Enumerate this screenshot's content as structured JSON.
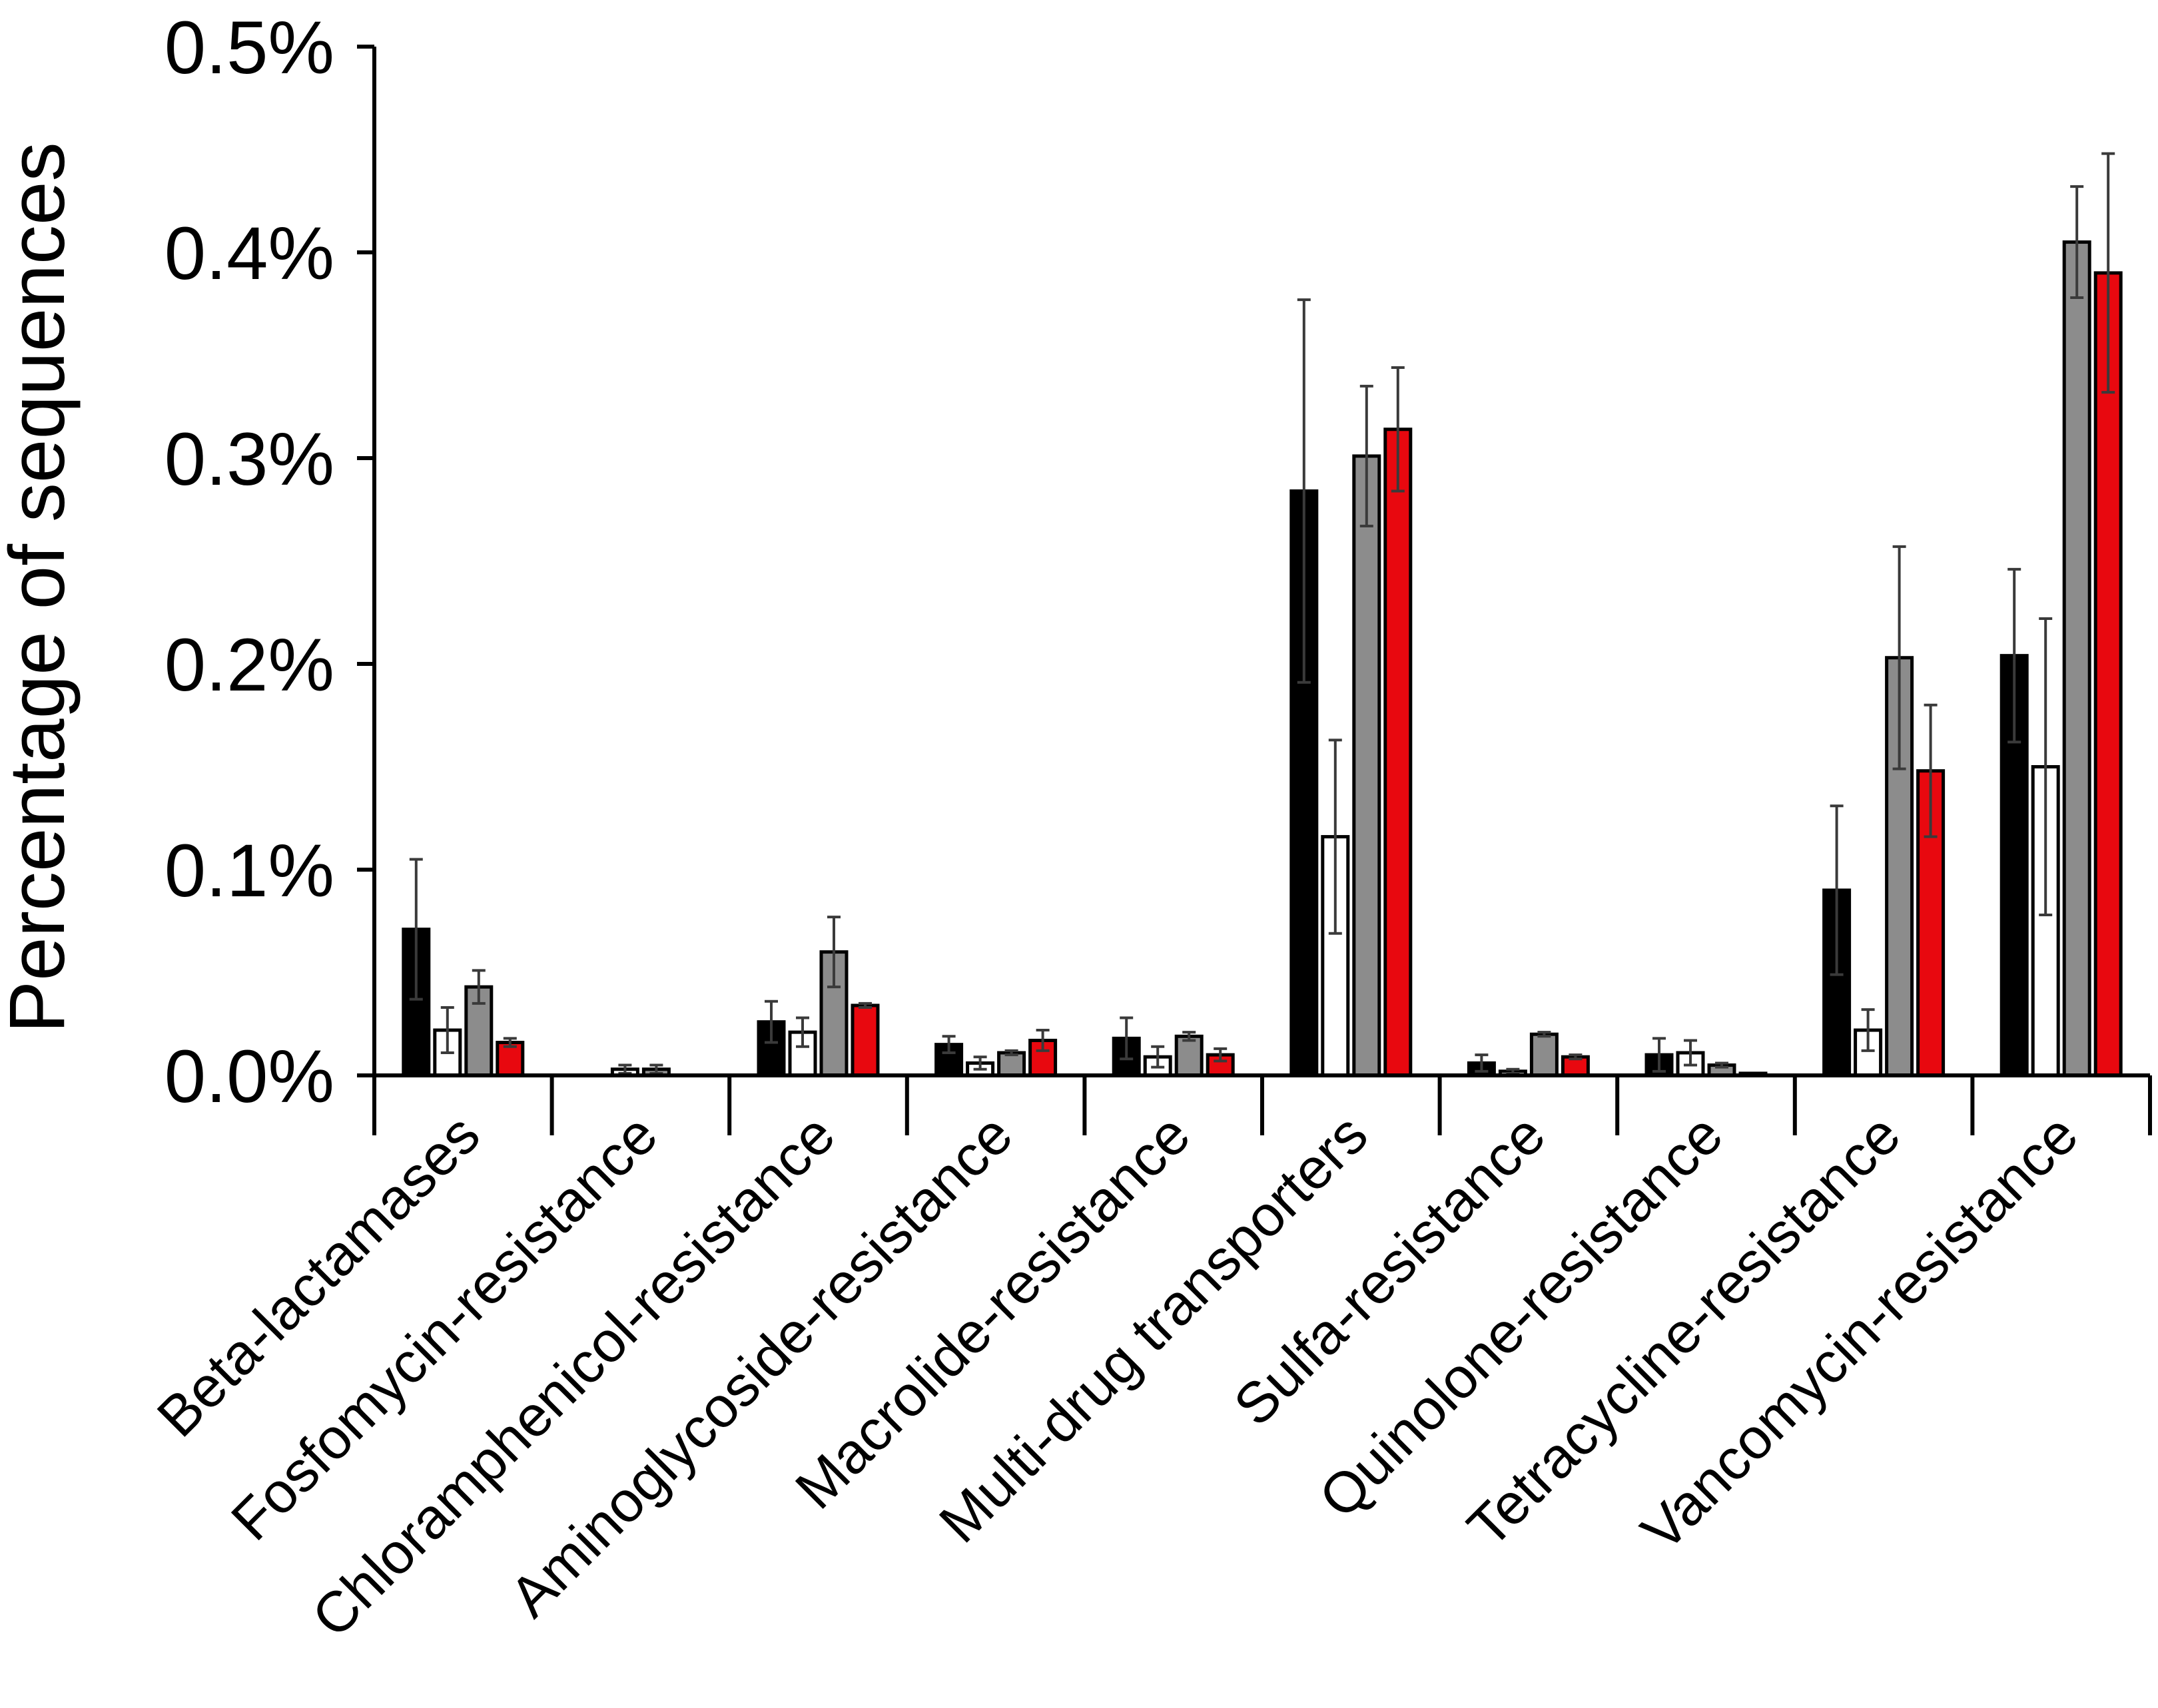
{
  "chart_data": {
    "type": "bar",
    "title": "",
    "xlabel": "",
    "ylabel": "Percentage of sequences",
    "ylim": [
      0,
      0.5
    ],
    "yticks": [
      "0.0%",
      "0.1%",
      "0.2%",
      "0.3%",
      "0.4%",
      "0.5%"
    ],
    "grid": false,
    "legend": "none",
    "categories": [
      "Beta-lactamases",
      "Fosfomycin-resistance",
      "Chloramphenicol-resistance",
      "Aminoglycoside-resistance",
      "Macrolide-resistance",
      "Multi-drug transporters",
      "Sulfa-resistance",
      "Quinolone-resistance",
      "Tetracycline-resistance",
      "Vancomycin-resistance"
    ],
    "series": [
      {
        "color": "#000000",
        "values": [
          0.071,
          0.0,
          0.026,
          0.015,
          0.018,
          0.284,
          0.006,
          0.01,
          0.09,
          0.204
        ],
        "errors": [
          0.034,
          0.0,
          0.01,
          0.004,
          0.01,
          0.093,
          0.004,
          0.008,
          0.041,
          0.042
        ]
      },
      {
        "color": "#ffffff",
        "values": [
          0.022,
          0.003,
          0.021,
          0.006,
          0.009,
          0.116,
          0.002,
          0.011,
          0.022,
          0.15
        ],
        "errors": [
          0.011,
          0.002,
          0.007,
          0.003,
          0.005,
          0.047,
          0.001,
          0.006,
          0.01,
          0.072
        ]
      },
      {
        "color": "#8c8c8c",
        "values": [
          0.043,
          0.003,
          0.06,
          0.011,
          0.019,
          0.301,
          0.02,
          0.005,
          0.203,
          0.405
        ],
        "errors": [
          0.008,
          0.002,
          0.017,
          0.001,
          0.002,
          0.034,
          0.001,
          0.001,
          0.054,
          0.027
        ]
      },
      {
        "color": "#e8080f",
        "values": [
          0.016,
          0.0,
          0.034,
          0.017,
          0.01,
          0.314,
          0.009,
          0.001,
          0.148,
          0.39
        ],
        "errors": [
          0.002,
          0.0,
          0.001,
          0.005,
          0.003,
          0.03,
          0.001,
          0.0,
          0.032,
          0.058
        ]
      }
    ]
  }
}
